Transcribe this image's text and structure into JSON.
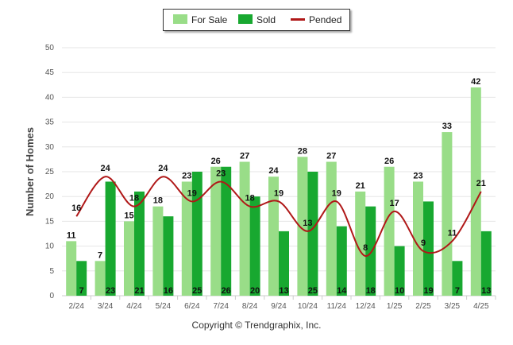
{
  "chart_data": {
    "type": "bar",
    "categories": [
      "2/24",
      "3/24",
      "4/24",
      "5/24",
      "6/24",
      "7/24",
      "8/24",
      "9/24",
      "10/24",
      "11/24",
      "12/24",
      "1/25",
      "2/25",
      "3/25",
      "4/25"
    ],
    "series": [
      {
        "name": "For Sale",
        "kind": "bar",
        "color": "#99dd88",
        "values": [
          11,
          7,
          15,
          18,
          23,
          26,
          27,
          24,
          28,
          27,
          21,
          26,
          23,
          33,
          42
        ]
      },
      {
        "name": "Sold",
        "kind": "bar",
        "color": "#18a830",
        "values": [
          7,
          23,
          21,
          16,
          25,
          26,
          20,
          13,
          25,
          14,
          18,
          10,
          19,
          7,
          13
        ]
      },
      {
        "name": "Pended",
        "kind": "line",
        "color": "#b01818",
        "values": [
          16,
          24,
          18,
          24,
          19,
          23,
          18,
          19,
          13,
          19,
          8,
          17,
          9,
          11,
          21
        ]
      }
    ],
    "ylabel": "Number of Homes",
    "ylim": [
      0,
      50
    ],
    "yticks": [
      0,
      5,
      10,
      15,
      20,
      25,
      30,
      35,
      40,
      45,
      50
    ],
    "grid": true,
    "legend": "top-center"
  },
  "legend": {
    "for_sale": "For Sale",
    "sold": "Sold",
    "pended": "Pended"
  },
  "footer": {
    "copyright": "Copyright © Trendgraphix, Inc."
  }
}
